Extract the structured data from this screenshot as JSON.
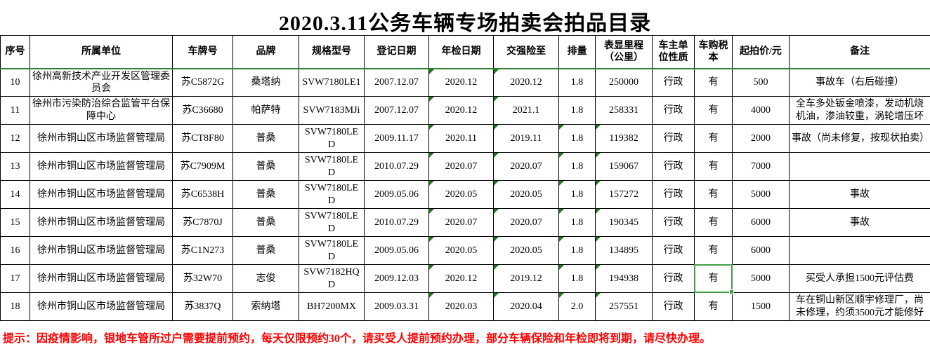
{
  "title": "2020.3.11公务车辆专场拍卖会拍品目录",
  "table": {
    "headers": [
      "序号",
      "所属单位",
      "车牌号",
      "品牌",
      "规格型号",
      "登记日期",
      "年检日期",
      "交强险至",
      "排量",
      "表显里程（公里）",
      "车主单位性质",
      "车购税本",
      "起拍价/元",
      "备注"
    ],
    "rows": [
      {
        "cells": [
          "10",
          "徐州高新技术产业开发区管理委员会",
          "苏C5872G",
          "桑塔纳",
          "SVW7180LE1",
          "2007.12.07",
          "2020.12",
          "2020.12",
          "1.8",
          "250000",
          "行政",
          "有",
          "500",
          "事故车（右后碰撞）"
        ],
        "error_indicators": [
          6,
          7
        ],
        "selected": null
      },
      {
        "cells": [
          "11",
          "徐州市污染防治综合监管平台保障中心",
          "苏C36680",
          "帕萨特",
          "SVW7183MJi",
          "2007.12.07",
          "2020.12",
          "2021.1",
          "1.8",
          "258331",
          "行政",
          "有",
          "4000",
          "全车多处钣金喷漆，发动机烧机油，渗油较重，涡轮增压坏"
        ],
        "error_indicators": [
          6,
          7
        ],
        "selected": null
      },
      {
        "cells": [
          "12",
          "徐州市铜山区市场监督管理局",
          "苏CT8F80",
          "普桑",
          "SVW7180LED",
          "2009.11.17",
          "2020.11",
          "2019.11",
          "1.8",
          "119382",
          "行政",
          "有",
          "2000",
          "事故（尚未修复，按现状拍卖）"
        ],
        "error_indicators": [
          6,
          7,
          8,
          9
        ],
        "selected": null
      },
      {
        "cells": [
          "13",
          "徐州市铜山区市场监督管理局",
          "苏C7909M",
          "普桑",
          "SVW7180LED",
          "2010.07.29",
          "2020.07",
          "2020.07",
          "1.8",
          "159067",
          "行政",
          "有",
          "7000",
          ""
        ],
        "error_indicators": [
          6,
          7,
          8,
          9
        ],
        "selected": null
      },
      {
        "cells": [
          "14",
          "徐州市铜山区市场监督管理局",
          "苏C6538H",
          "普桑",
          "SVW7180LED",
          "2009.05.06",
          "2020.05",
          "2020.05",
          "1.8",
          "157272",
          "行政",
          "有",
          "5000",
          "事故"
        ],
        "error_indicators": [
          6,
          7,
          8,
          9
        ],
        "selected": null
      },
      {
        "cells": [
          "15",
          "徐州市铜山区市场监督管理局",
          "苏C7870J",
          "普桑",
          "SVW7180LED",
          "2010.07.29",
          "2020.07",
          "2020.07",
          "1.8",
          "190345",
          "行政",
          "有",
          "6000",
          "事故"
        ],
        "error_indicators": [
          6,
          7,
          8,
          9
        ],
        "selected": null
      },
      {
        "cells": [
          "16",
          "徐州市铜山区市场监督管理局",
          "苏C1N273",
          "普桑",
          "SVW7180LED",
          "2009.05.06",
          "2020.05",
          "2020.05",
          "1.8",
          "134895",
          "行政",
          "有",
          "6000",
          ""
        ],
        "error_indicators": [
          6,
          7,
          8,
          9
        ],
        "selected": null
      },
      {
        "cells": [
          "17",
          "徐州市铜山区市场监督管理局",
          "苏32W70",
          "志俊",
          "SVW7182HQD",
          "2009.12.03",
          "2020.12",
          "2019.12",
          "1.8",
          "194938",
          "行政",
          "有",
          "5000",
          "买受人承担1500元评估费"
        ],
        "error_indicators": [
          6,
          7,
          8,
          9
        ],
        "selected": 11
      },
      {
        "cells": [
          "18",
          "徐州市铜山区市场监督管理局",
          "苏3837Q",
          "索纳塔",
          "BH7200MX",
          "2009.03.31",
          "2020.03",
          "2020.04",
          "2.0",
          "257551",
          "行政",
          "有",
          "1500",
          "车在铜山新区顺宇修理厂，尚未修理，约须3500元才能修好"
        ],
        "error_indicators": [
          6,
          7,
          8,
          9
        ],
        "selected": null
      }
    ]
  },
  "footer_note": "提示：因疫情影响，银地车管所过户需要提前预约，每天仅限预约30个，请买受人提前预约办理，部分车辆保险和年检即将到期，请尽快办理。",
  "colors": {
    "selection_green": "#43a047",
    "error_indicator_green": "#1f7a1f",
    "frozen_pane_line_green": "#2f8032",
    "note_red": "#ff0000",
    "grid_border": "#000000",
    "title_black": "#000000"
  }
}
